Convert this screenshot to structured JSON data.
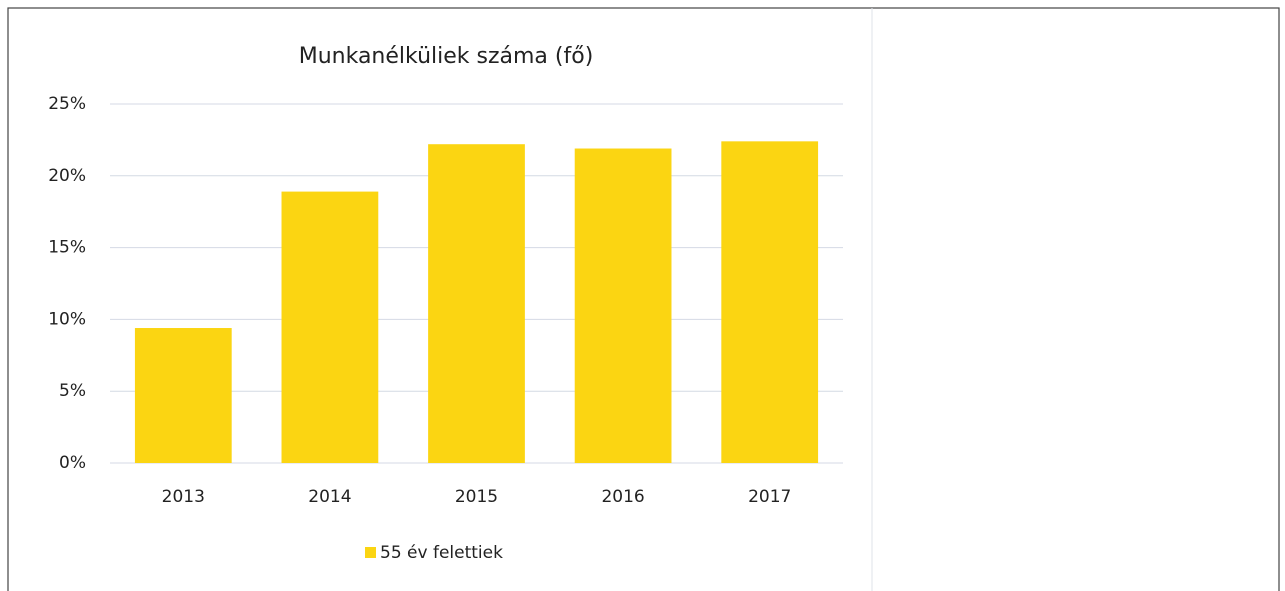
{
  "chart_data": {
    "type": "bar",
    "title": "Munkanélküliek száma (fő)",
    "categories": [
      "2013",
      "2014",
      "2015",
      "2016",
      "2017"
    ],
    "series": [
      {
        "name": "55 év felettiek",
        "color": "#fbd512",
        "values": [
          9.4,
          18.9,
          22.2,
          21.9,
          22.4
        ]
      }
    ],
    "ylim": [
      0,
      25
    ],
    "yticks": [
      {
        "value": 0,
        "label": "0%"
      },
      {
        "value": 5,
        "label": "5%"
      },
      {
        "value": 10,
        "label": "10%"
      },
      {
        "value": 15,
        "label": "15%"
      },
      {
        "value": 20,
        "label": "20%"
      },
      {
        "value": 25,
        "label": "25%"
      }
    ],
    "grid": true,
    "legend": "bottom"
  }
}
